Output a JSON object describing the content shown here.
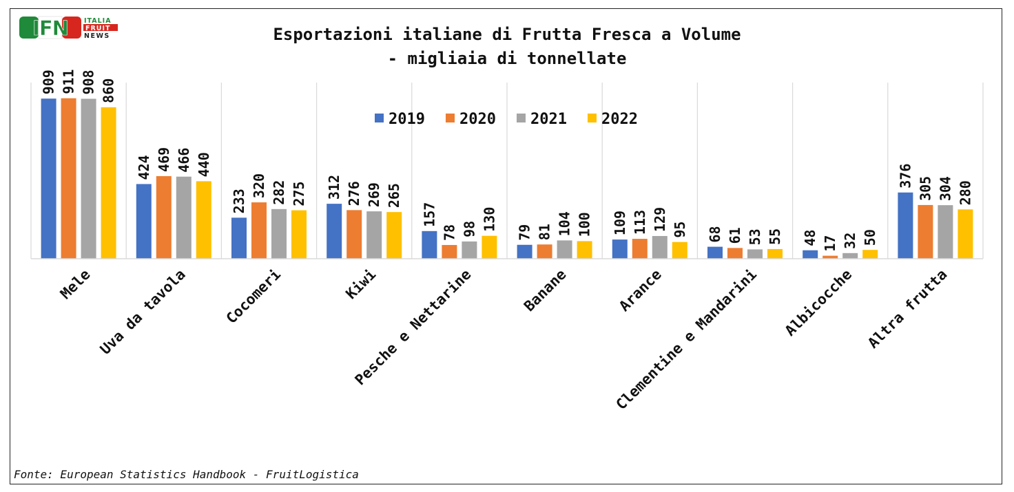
{
  "logo": {
    "mark": "IFN",
    "line1": "ITALIA",
    "line2": "FRUIT",
    "line3": "NEWS",
    "colors": {
      "green": "#1f8a3a",
      "red": "#d7261e"
    }
  },
  "source": "Fonte: European Statistics Handbook - FruitLogistica",
  "chart_data": {
    "type": "bar",
    "title": "Esportazioni italiane di Frutta Fresca a Volume",
    "subtitle": "- migliaia di tonnellate",
    "categories": [
      "Mele",
      "Uva da tavola",
      "Cocomeri",
      "Kiwi",
      "Pesche e Nettarine",
      "Banane",
      "Arance",
      "Clementine e Mandarini",
      "Albicocche",
      "Altra frutta"
    ],
    "series": [
      {
        "name": "2019",
        "color": "#4472c4",
        "values": [
          909,
          424,
          233,
          312,
          157,
          79,
          109,
          68,
          48,
          376
        ]
      },
      {
        "name": "2020",
        "color": "#ed7d31",
        "values": [
          911,
          469,
          320,
          276,
          78,
          81,
          113,
          61,
          17,
          305
        ]
      },
      {
        "name": "2021",
        "color": "#a5a5a5",
        "values": [
          908,
          466,
          282,
          269,
          98,
          104,
          129,
          53,
          32,
          304
        ]
      },
      {
        "name": "2022",
        "color": "#ffc000",
        "values": [
          860,
          440,
          275,
          265,
          130,
          100,
          95,
          55,
          50,
          280
        ]
      }
    ],
    "ylim": [
      0,
      1000
    ],
    "grid": "vertical category separators",
    "legend": "top-center",
    "data_labels": "rotated vertical above bars"
  }
}
